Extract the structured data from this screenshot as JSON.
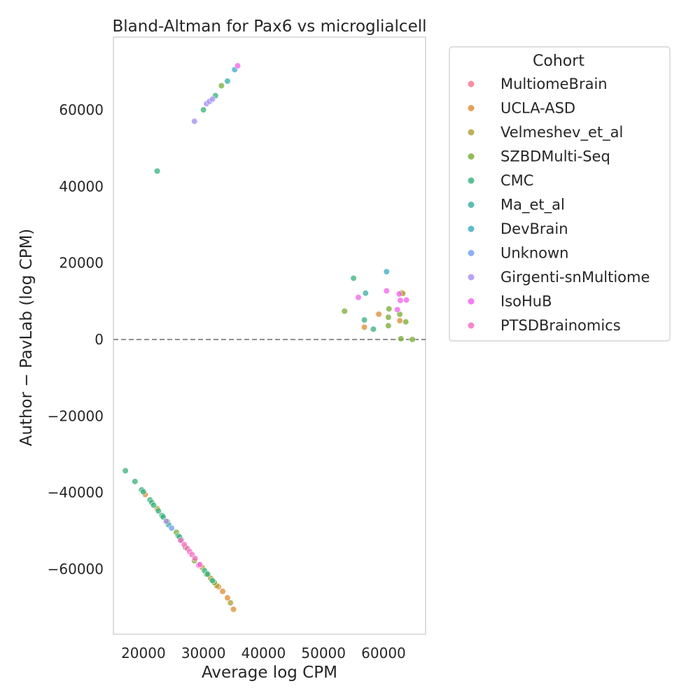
{
  "chart_data": {
    "type": "scatter",
    "title": "Bland-Altman for Pax6 vs microglialcell",
    "xlabel": "Average log CPM",
    "ylabel": "Author − PavLab (log CPM)",
    "xlim": [
      15000,
      67000
    ],
    "ylim": [
      -77000,
      79000
    ],
    "xticks": [
      20000,
      30000,
      40000,
      50000,
      60000
    ],
    "yticks": [
      -60000,
      -40000,
      -20000,
      0,
      20000,
      40000,
      60000
    ],
    "xtick_labels": [
      "20000",
      "30000",
      "40000",
      "50000",
      "60000"
    ],
    "ytick_labels": [
      "−60000",
      "−40000",
      "−20000",
      "0",
      "20000",
      "40000",
      "60000"
    ],
    "reference_line": 0,
    "grid": false,
    "legend_title": "Cohort",
    "legend_position": "outside-right",
    "series": [
      {
        "name": "MultiomeBrain",
        "color": "#f77189",
        "points": []
      },
      {
        "name": "UCLA-ASD",
        "color": "#dc8932",
        "points": [
          [
            20300,
            -40500
          ],
          [
            56800,
            3200
          ],
          [
            59200,
            6600
          ],
          [
            62700,
            4900
          ],
          [
            33200,
            -65800
          ],
          [
            34000,
            -67500
          ],
          [
            35000,
            -70500
          ],
          [
            32500,
            -64600
          ]
        ]
      },
      {
        "name": "Velmeshev_et_al",
        "color": "#ae9d31",
        "points": [
          [
            22300,
            -44200
          ],
          [
            31200,
            -62400
          ],
          [
            32200,
            -64300
          ],
          [
            34500,
            -68800
          ],
          [
            63000,
            12200
          ],
          [
            63200,
            12000
          ],
          [
            29800,
            -59600
          ]
        ]
      },
      {
        "name": "SZBDMulti-Seq",
        "color": "#77ab31",
        "points": [
          [
            33000,
            66300
          ],
          [
            53500,
            7400
          ],
          [
            60900,
            8000
          ],
          [
            60800,
            5800
          ],
          [
            60800,
            3600
          ],
          [
            62700,
            6600
          ],
          [
            63700,
            4600
          ],
          [
            62900,
            200
          ],
          [
            64800,
            0
          ],
          [
            25500,
            -50400
          ],
          [
            28500,
            -57800
          ],
          [
            30500,
            -61300
          ],
          [
            31800,
            -63500
          ],
          [
            24000,
            -47600
          ],
          [
            27000,
            -54300
          ]
        ]
      },
      {
        "name": "CMC",
        "color": "#33b07a",
        "points": [
          [
            22300,
            44000
          ],
          [
            30000,
            60000
          ],
          [
            32000,
            63700
          ],
          [
            55000,
            16000
          ],
          [
            56800,
            5100
          ],
          [
            58300,
            2700
          ],
          [
            17000,
            -34300
          ],
          [
            18600,
            -37100
          ],
          [
            19700,
            -39300
          ],
          [
            20000,
            -39800
          ],
          [
            21100,
            -41900
          ],
          [
            21400,
            -42600
          ],
          [
            21700,
            -43300
          ],
          [
            22500,
            -44800
          ],
          [
            23100,
            -46000
          ],
          [
            23300,
            -46400
          ],
          [
            25800,
            -51300
          ],
          [
            26300,
            -52300
          ],
          [
            30200,
            -60400
          ],
          [
            30700,
            -61300
          ],
          [
            31500,
            -63000
          ],
          [
            26000,
            -51600
          ]
        ]
      },
      {
        "name": "Ma_et_al",
        "color": "#36ada4",
        "points": [
          [
            34000,
            67500
          ],
          [
            57000,
            12100
          ],
          [
            24200,
            -48400
          ]
        ]
      },
      {
        "name": "DevBrain",
        "color": "#38a9c5",
        "points": [
          [
            35200,
            70500
          ],
          [
            60500,
            17700
          ]
        ]
      },
      {
        "name": "Unknown",
        "color": "#6e9bf4",
        "points": [
          [
            24700,
            -49300
          ]
        ]
      },
      {
        "name": "Girgenti-snMultiome",
        "color": "#a48cf4",
        "points": [
          [
            28500,
            57000
          ],
          [
            30500,
            61600
          ],
          [
            31000,
            62200
          ],
          [
            31500,
            62800
          ],
          [
            23800,
            -47500
          ]
        ]
      },
      {
        "name": "IsoHuB",
        "color": "#f45deb",
        "points": [
          [
            35700,
            71500
          ],
          [
            55800,
            11000
          ],
          [
            60500,
            12700
          ],
          [
            62300,
            7800
          ],
          [
            62800,
            10200
          ],
          [
            63800,
            10300
          ],
          [
            62600,
            11900
          ],
          [
            29200,
            -59000
          ]
        ]
      },
      {
        "name": "PTSDBrainomics",
        "color": "#f668c2",
        "points": [
          [
            26200,
            -52500
          ],
          [
            26800,
            -53600
          ],
          [
            27300,
            -54600
          ],
          [
            27700,
            -55400
          ],
          [
            28100,
            -56200
          ],
          [
            28600,
            -57200
          ],
          [
            29400,
            -58800
          ]
        ]
      }
    ]
  }
}
